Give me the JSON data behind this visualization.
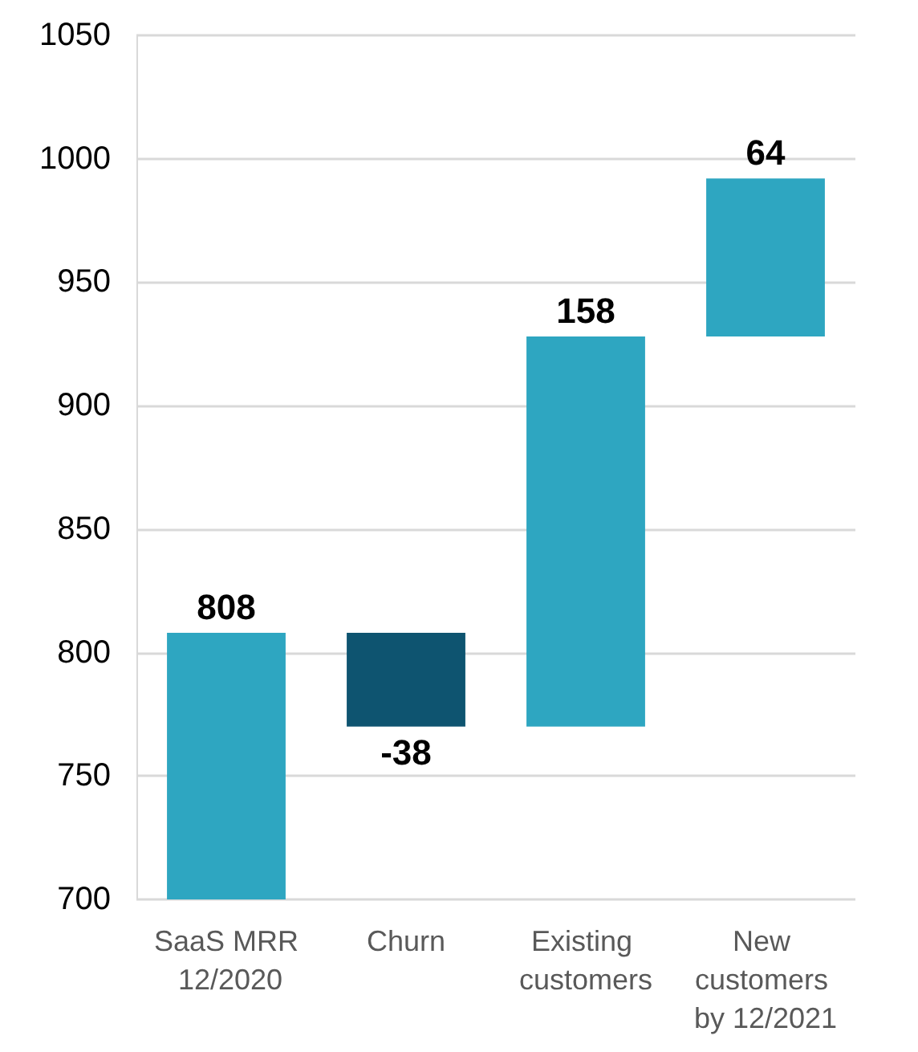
{
  "chart_data": {
    "type": "bar",
    "categories": [
      "SaaS MRR 12/2020",
      "Churn",
      "Existing customers",
      "New customers by 12/2021"
    ],
    "base": [
      700,
      808,
      770,
      928
    ],
    "values": [
      108,
      -38,
      158,
      64
    ],
    "value_labels": [
      "808",
      "-38",
      "158",
      "64"
    ],
    "colors": [
      "#2ea6c1",
      "#0e5470",
      "#2ea6c1",
      "#2ea6c1"
    ],
    "ylim": [
      700,
      1050
    ],
    "yticks": [
      700,
      750,
      800,
      850,
      900,
      950,
      1000,
      1050
    ],
    "grid": "y"
  }
}
